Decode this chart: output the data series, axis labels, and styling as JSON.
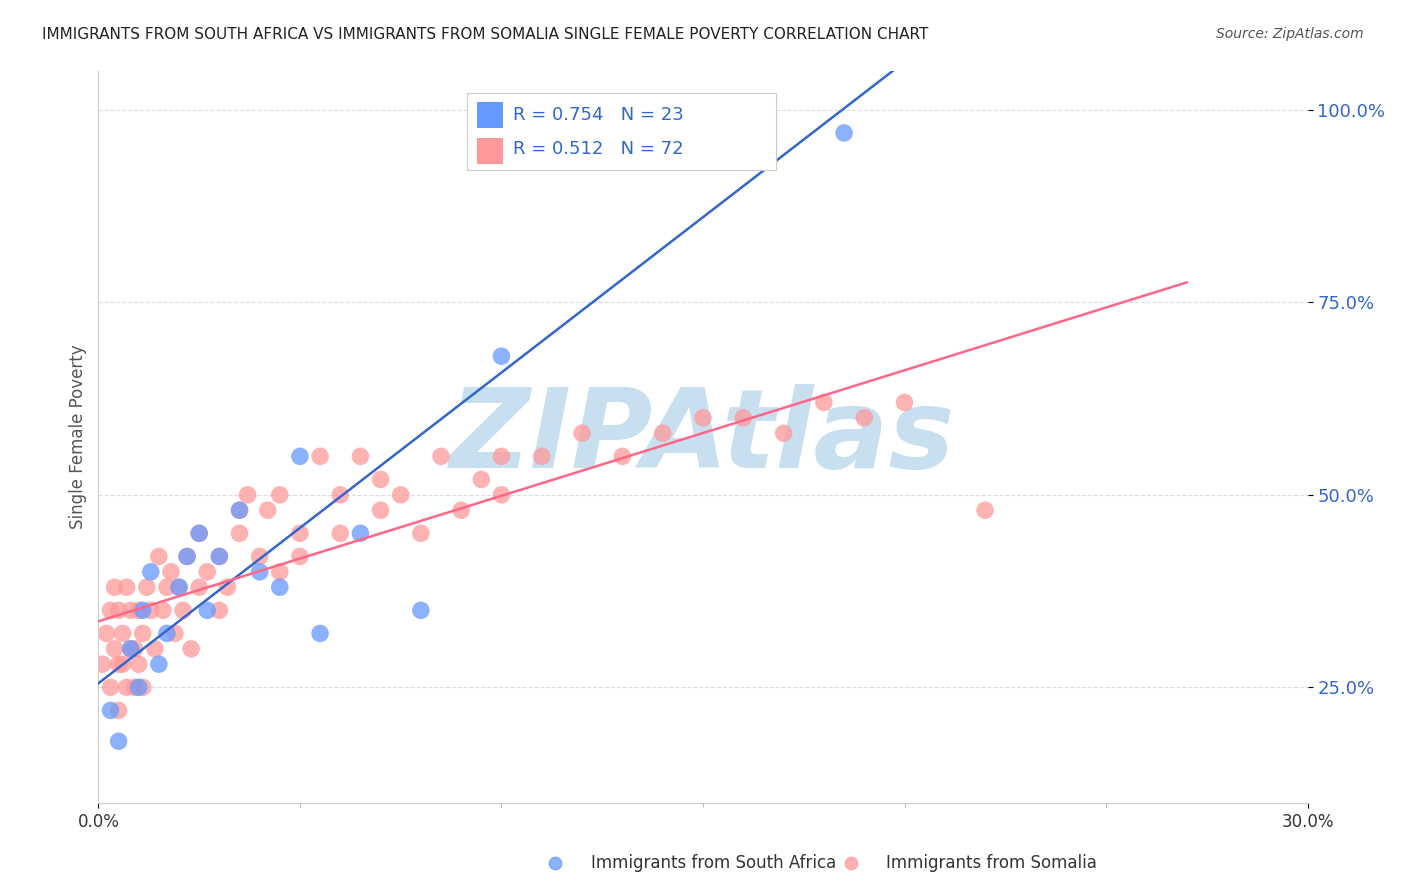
{
  "title": "IMMIGRANTS FROM SOUTH AFRICA VS IMMIGRANTS FROM SOMALIA SINGLE FEMALE POVERTY CORRELATION CHART",
  "source": "Source: ZipAtlas.com",
  "ylabel": "Single Female Poverty",
  "xlim": [
    0.0,
    30.0
  ],
  "ylim": [
    10.0,
    105.0
  ],
  "yticks": [
    25.0,
    50.0,
    75.0,
    100.0
  ],
  "ytick_labels": [
    "25.0%",
    "50.0%",
    "75.0%",
    "100.0%"
  ],
  "xtick_positions": [
    0.0,
    30.0
  ],
  "xtick_labels": [
    "0.0%",
    "30.0%"
  ],
  "legend_r_blue": "0.754",
  "legend_n_blue": "23",
  "legend_r_pink": "0.512",
  "legend_n_pink": "72",
  "legend_label_blue": "Immigrants from South Africa",
  "legend_label_pink": "Immigrants from Somalia",
  "blue_color": "#6699ff",
  "pink_color": "#ff9999",
  "line_blue_color": "#3366cc",
  "line_pink_color": "#ff6688",
  "watermark": "ZIPAtlas",
  "watermark_color": "#c8dff0",
  "background_color": "#ffffff",
  "grid_color": "#dddddd",
  "title_color": "#222222",
  "axis_label_color": "#555555",
  "tick_color": "#3366cc",
  "blue_scatter_x": [
    0.3,
    0.5,
    0.8,
    1.0,
    1.1,
    1.3,
    1.5,
    1.7,
    2.0,
    2.2,
    2.5,
    2.7,
    3.0,
    3.5,
    4.0,
    4.5,
    5.0,
    5.5,
    6.5,
    8.0,
    10.0,
    13.0,
    18.5
  ],
  "blue_scatter_y": [
    22,
    18,
    30,
    25,
    35,
    40,
    28,
    32,
    38,
    42,
    45,
    35,
    42,
    48,
    40,
    38,
    55,
    32,
    45,
    35,
    68,
    97,
    97
  ],
  "pink_scatter_x": [
    0.1,
    0.2,
    0.3,
    0.3,
    0.4,
    0.4,
    0.5,
    0.5,
    0.5,
    0.6,
    0.6,
    0.7,
    0.7,
    0.8,
    0.8,
    0.9,
    0.9,
    1.0,
    1.0,
    1.1,
    1.1,
    1.2,
    1.3,
    1.4,
    1.5,
    1.6,
    1.7,
    1.8,
    1.9,
    2.0,
    2.1,
    2.2,
    2.3,
    2.5,
    2.5,
    2.7,
    3.0,
    3.0,
    3.2,
    3.5,
    3.5,
    3.7,
    4.0,
    4.2,
    4.5,
    4.5,
    5.0,
    5.0,
    5.5,
    6.0,
    6.0,
    6.5,
    7.0,
    7.0,
    7.5,
    8.0,
    8.5,
    9.0,
    9.5,
    10.0,
    10.0,
    11.0,
    12.0,
    13.0,
    14.0,
    15.0,
    16.0,
    17.0,
    18.0,
    19.0,
    20.0,
    22.0
  ],
  "pink_scatter_y": [
    28,
    32,
    25,
    35,
    30,
    38,
    22,
    28,
    35,
    28,
    32,
    25,
    38,
    30,
    35,
    25,
    30,
    35,
    28,
    32,
    25,
    38,
    35,
    30,
    42,
    35,
    38,
    40,
    32,
    38,
    35,
    42,
    30,
    45,
    38,
    40,
    35,
    42,
    38,
    48,
    45,
    50,
    42,
    48,
    40,
    50,
    45,
    42,
    55,
    50,
    45,
    55,
    48,
    52,
    50,
    45,
    55,
    48,
    52,
    50,
    55,
    55,
    58,
    55,
    58,
    60,
    60,
    58,
    62,
    60,
    62,
    48
  ]
}
